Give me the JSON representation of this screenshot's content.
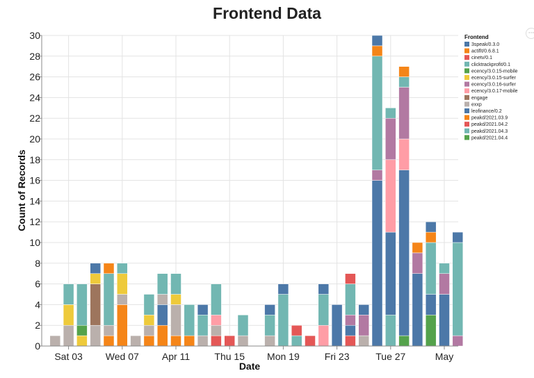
{
  "chart_data": {
    "type": "bar",
    "stacked": true,
    "title": "Frontend Data",
    "xlabel": "Date",
    "ylabel": "Count of Records",
    "ylim": [
      0,
      30
    ],
    "yticks": [
      0,
      2,
      4,
      6,
      8,
      10,
      12,
      14,
      16,
      18,
      20,
      22,
      24,
      26,
      28,
      30
    ],
    "grid": true,
    "x_tick_labels": [
      {
        "label": "Sat 03",
        "date": "2021-04-03"
      },
      {
        "label": "Wed 07",
        "date": "2021-04-07"
      },
      {
        "label": "Apr 11",
        "date": "2021-04-11"
      },
      {
        "label": "Thu 15",
        "date": "2021-04-15"
      },
      {
        "label": "Mon 19",
        "date": "2021-04-19"
      },
      {
        "label": "Fri 23",
        "date": "2021-04-23"
      },
      {
        "label": "Tue 27",
        "date": "2021-04-27"
      },
      {
        "label": "May",
        "date": "2021-05-01"
      }
    ],
    "legend": {
      "title": "Frontend",
      "position": "right",
      "entries": [
        {
          "name": "3speak/0.3.0",
          "color": "#4c78a8"
        },
        {
          "name": "actifit/0.6.8.1",
          "color": "#f58518"
        },
        {
          "name": "cinetv/0.1",
          "color": "#e45756"
        },
        {
          "name": "clicktrackprofit/0.1",
          "color": "#72b7b2"
        },
        {
          "name": "ecency/3.0.15-mobile",
          "color": "#54a24b"
        },
        {
          "name": "ecency/3.0.15-surfer",
          "color": "#eeca3b"
        },
        {
          "name": "ecency/3.0.16-surfer",
          "color": "#b279a2"
        },
        {
          "name": "ecency/3.0.17-mobile",
          "color": "#ff9da6"
        },
        {
          "name": "engage",
          "color": "#9d755d"
        },
        {
          "name": "exxp",
          "color": "#bab0ac"
        },
        {
          "name": "leofinance/0.2",
          "color": "#4c78a8"
        },
        {
          "name": "peakd/2021.03.9",
          "color": "#f58518"
        },
        {
          "name": "peakd/2021.04.2",
          "color": "#e45756"
        },
        {
          "name": "peakd/2021.04.3",
          "color": "#72b7b2"
        },
        {
          "name": "peakd/2021.04.4",
          "color": "#54a24b"
        }
      ]
    },
    "bars": [
      {
        "date": "2021-04-02",
        "segments": [
          {
            "series": "exxp",
            "value": 1
          }
        ]
      },
      {
        "date": "2021-04-03",
        "segments": [
          {
            "series": "exxp",
            "value": 2
          },
          {
            "series": "ecency/3.0.15-surfer",
            "value": 2
          },
          {
            "series": "peakd/2021.04.3",
            "value": 2
          }
        ]
      },
      {
        "date": "2021-04-04",
        "segments": [
          {
            "series": "ecency/3.0.15-surfer",
            "value": 1
          },
          {
            "series": "ecency/3.0.15-mobile",
            "value": 1
          },
          {
            "series": "peakd/2021.04.3",
            "value": 4
          }
        ]
      },
      {
        "date": "2021-04-05",
        "segments": [
          {
            "series": "exxp",
            "value": 2
          },
          {
            "series": "engage",
            "value": 4
          },
          {
            "series": "ecency/3.0.15-surfer",
            "value": 1
          },
          {
            "series": "leofinance/0.2",
            "value": 1
          }
        ]
      },
      {
        "date": "2021-04-06",
        "segments": [
          {
            "series": "actifit/0.6.8.1",
            "value": 1
          },
          {
            "series": "exxp",
            "value": 1
          },
          {
            "series": "peakd/2021.04.3",
            "value": 5
          },
          {
            "series": "actifit/0.6.8.1",
            "value": 1
          }
        ]
      },
      {
        "date": "2021-04-07",
        "segments": [
          {
            "series": "actifit/0.6.8.1",
            "value": 4
          },
          {
            "series": "exxp",
            "value": 1
          },
          {
            "series": "ecency/3.0.15-surfer",
            "value": 2
          },
          {
            "series": "peakd/2021.04.3",
            "value": 1
          }
        ]
      },
      {
        "date": "2021-04-08",
        "segments": [
          {
            "series": "exxp",
            "value": 1
          }
        ]
      },
      {
        "date": "2021-04-09",
        "segments": [
          {
            "series": "actifit/0.6.8.1",
            "value": 1
          },
          {
            "series": "exxp",
            "value": 1
          },
          {
            "series": "ecency/3.0.15-surfer",
            "value": 1
          },
          {
            "series": "peakd/2021.04.3",
            "value": 2
          }
        ]
      },
      {
        "date": "2021-04-10",
        "segments": [
          {
            "series": "actifit/0.6.8.1",
            "value": 2
          },
          {
            "series": "3speak/0.3.0",
            "value": 2
          },
          {
            "series": "exxp",
            "value": 1
          },
          {
            "series": "peakd/2021.04.3",
            "value": 2
          }
        ]
      },
      {
        "date": "2021-04-11",
        "segments": [
          {
            "series": "actifit/0.6.8.1",
            "value": 1
          },
          {
            "series": "exxp",
            "value": 3
          },
          {
            "series": "ecency/3.0.15-surfer",
            "value": 1
          },
          {
            "series": "peakd/2021.04.3",
            "value": 2
          }
        ]
      },
      {
        "date": "2021-04-12",
        "segments": [
          {
            "series": "actifit/0.6.8.1",
            "value": 1
          },
          {
            "series": "peakd/2021.04.3",
            "value": 3
          }
        ]
      },
      {
        "date": "2021-04-13",
        "segments": [
          {
            "series": "exxp",
            "value": 1
          },
          {
            "series": "peakd/2021.04.3",
            "value": 2
          },
          {
            "series": "3speak/0.3.0",
            "value": 1
          }
        ]
      },
      {
        "date": "2021-04-14",
        "segments": [
          {
            "series": "cinetv/0.1",
            "value": 1
          },
          {
            "series": "exxp",
            "value": 1
          },
          {
            "series": "ecency/3.0.17-mobile",
            "value": 1
          },
          {
            "series": "peakd/2021.04.3",
            "value": 3
          }
        ]
      },
      {
        "date": "2021-04-15",
        "segments": [
          {
            "series": "cinetv/0.1",
            "value": 1
          }
        ]
      },
      {
        "date": "2021-04-16",
        "segments": [
          {
            "series": "exxp",
            "value": 1
          },
          {
            "series": "peakd/2021.04.3",
            "value": 2
          }
        ]
      },
      {
        "date": "2021-04-18",
        "segments": [
          {
            "series": "exxp",
            "value": 1
          },
          {
            "series": "peakd/2021.04.3",
            "value": 2
          },
          {
            "series": "3speak/0.3.0",
            "value": 1
          }
        ]
      },
      {
        "date": "2021-04-19",
        "segments": [
          {
            "series": "peakd/2021.04.3",
            "value": 5
          },
          {
            "series": "3speak/0.3.0",
            "value": 1
          }
        ]
      },
      {
        "date": "2021-04-20",
        "segments": [
          {
            "series": "peakd/2021.04.3",
            "value": 1
          },
          {
            "series": "cinetv/0.1",
            "value": 1
          }
        ]
      },
      {
        "date": "2021-04-21",
        "segments": [
          {
            "series": "cinetv/0.1",
            "value": 1
          }
        ]
      },
      {
        "date": "2021-04-22",
        "segments": [
          {
            "series": "ecency/3.0.17-mobile",
            "value": 2
          },
          {
            "series": "peakd/2021.04.3",
            "value": 3
          },
          {
            "series": "3speak/0.3.0",
            "value": 1
          }
        ]
      },
      {
        "date": "2021-04-23",
        "segments": [
          {
            "series": "3speak/0.3.0",
            "value": 4
          }
        ]
      },
      {
        "date": "2021-04-24",
        "segments": [
          {
            "series": "cinetv/0.1",
            "value": 1
          },
          {
            "series": "3speak/0.3.0",
            "value": 1
          },
          {
            "series": "ecency/3.0.16-surfer",
            "value": 1
          },
          {
            "series": "peakd/2021.04.3",
            "value": 3
          },
          {
            "series": "cinetv/0.1",
            "value": 1
          }
        ]
      },
      {
        "date": "2021-04-25",
        "segments": [
          {
            "series": "exxp",
            "value": 1
          },
          {
            "series": "ecency/3.0.16-surfer",
            "value": 2
          },
          {
            "series": "3speak/0.3.0",
            "value": 1
          }
        ]
      },
      {
        "date": "2021-04-26",
        "segments": [
          {
            "series": "3speak/0.3.0",
            "value": 16
          },
          {
            "series": "ecency/3.0.16-surfer",
            "value": 1
          },
          {
            "series": "peakd/2021.04.3",
            "value": 11
          },
          {
            "series": "actifit/0.6.8.1",
            "value": 1
          },
          {
            "series": "3speak/0.3.0",
            "value": 1
          }
        ]
      },
      {
        "date": "2021-04-27",
        "segments": [
          {
            "series": "peakd/2021.04.3",
            "value": 3
          },
          {
            "series": "3speak/0.3.0",
            "value": 8
          },
          {
            "series": "ecency/3.0.17-mobile",
            "value": 7
          },
          {
            "series": "ecency/3.0.16-surfer",
            "value": 4
          },
          {
            "series": "peakd/2021.04.3",
            "value": 1
          }
        ]
      },
      {
        "date": "2021-04-28",
        "segments": [
          {
            "series": "peakd/2021.04.4",
            "value": 1
          },
          {
            "series": "3speak/0.3.0",
            "value": 16
          },
          {
            "series": "ecency/3.0.17-mobile",
            "value": 3
          },
          {
            "series": "ecency/3.0.16-surfer",
            "value": 5
          },
          {
            "series": "peakd/2021.04.3",
            "value": 1
          },
          {
            "series": "actifit/0.6.8.1",
            "value": 1
          }
        ]
      },
      {
        "date": "2021-04-29",
        "segments": [
          {
            "series": "3speak/0.3.0",
            "value": 7
          },
          {
            "series": "ecency/3.0.16-surfer",
            "value": 2
          },
          {
            "series": "actifit/0.6.8.1",
            "value": 1
          }
        ]
      },
      {
        "date": "2021-04-30",
        "segments": [
          {
            "series": "peakd/2021.04.4",
            "value": 3
          },
          {
            "series": "3speak/0.3.0",
            "value": 2
          },
          {
            "series": "peakd/2021.04.3",
            "value": 5
          },
          {
            "series": "actifit/0.6.8.1",
            "value": 1
          },
          {
            "series": "3speak/0.3.0",
            "value": 1
          }
        ]
      },
      {
        "date": "2021-05-01",
        "segments": [
          {
            "series": "3speak/0.3.0",
            "value": 5
          },
          {
            "series": "ecency/3.0.16-surfer",
            "value": 2
          },
          {
            "series": "peakd/2021.04.3",
            "value": 1
          }
        ]
      },
      {
        "date": "2021-05-02",
        "segments": [
          {
            "series": "ecency/3.0.16-surfer",
            "value": 1
          },
          {
            "series": "peakd/2021.04.3",
            "value": 9
          },
          {
            "series": "3speak/0.3.0",
            "value": 1
          }
        ]
      }
    ]
  }
}
